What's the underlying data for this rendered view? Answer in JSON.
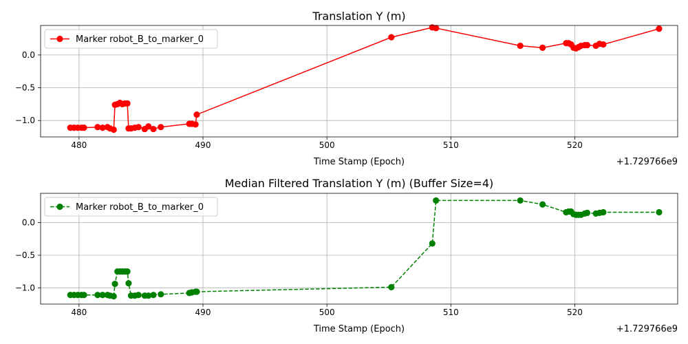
{
  "chart_data": [
    {
      "type": "line",
      "title": "Translation Y (m)",
      "xlabel": "Time Stamp (Epoch)",
      "ylabel": "",
      "x_offset_label": "+1.729766e9",
      "xlim": [
        476.9,
        528.3
      ],
      "ylim": [
        -1.25,
        0.45
      ],
      "xticks": [
        480,
        490,
        500,
        510,
        520
      ],
      "xtick_labels": [
        "480",
        "490",
        "500",
        "510",
        "520"
      ],
      "yticks": [
        0.0,
        -0.5,
        -1.0
      ],
      "ytick_labels": [
        "0.0",
        "−0.5",
        "−1.0"
      ],
      "grid": true,
      "legend_position": "top-left",
      "series": [
        {
          "name": "Marker robot_B_to_marker_0",
          "color": "#ff0000",
          "line_style": "solid",
          "marker": "circle",
          "points": [
            [
              479.3,
              -1.11
            ],
            [
              479.6,
              -1.11
            ],
            [
              479.9,
              -1.11
            ],
            [
              480.2,
              -1.11
            ],
            [
              480.4,
              -1.11
            ],
            [
              481.5,
              -1.1
            ],
            [
              481.9,
              -1.11
            ],
            [
              482.3,
              -1.1
            ],
            [
              482.5,
              -1.12
            ],
            [
              482.8,
              -1.14
            ],
            [
              482.9,
              -0.76
            ],
            [
              483.1,
              -0.75
            ],
            [
              483.3,
              -0.73
            ],
            [
              483.5,
              -0.75
            ],
            [
              483.7,
              -0.74
            ],
            [
              483.9,
              -0.74
            ],
            [
              484.0,
              -1.12
            ],
            [
              484.2,
              -1.12
            ],
            [
              484.5,
              -1.11
            ],
            [
              484.8,
              -1.1
            ],
            [
              485.3,
              -1.13
            ],
            [
              485.6,
              -1.09
            ],
            [
              486.0,
              -1.13
            ],
            [
              486.6,
              -1.1
            ],
            [
              488.9,
              -1.05
            ],
            [
              489.1,
              -1.05
            ],
            [
              489.4,
              -1.06
            ],
            [
              489.5,
              -0.91
            ],
            [
              505.2,
              0.27
            ],
            [
              508.5,
              0.42
            ],
            [
              508.8,
              0.41
            ],
            [
              515.6,
              0.14
            ],
            [
              517.4,
              0.11
            ],
            [
              519.3,
              0.18
            ],
            [
              519.5,
              0.18
            ],
            [
              519.7,
              0.16
            ],
            [
              519.9,
              0.11
            ],
            [
              520.1,
              0.1
            ],
            [
              520.3,
              0.12
            ],
            [
              520.5,
              0.14
            ],
            [
              520.8,
              0.15
            ],
            [
              521.0,
              0.15
            ],
            [
              521.7,
              0.14
            ],
            [
              522.0,
              0.17
            ],
            [
              522.3,
              0.16
            ],
            [
              526.8,
              0.4
            ]
          ]
        }
      ]
    },
    {
      "type": "line",
      "title": "Median Filtered Translation Y (m) (Buffer Size=4)",
      "xlabel": "Time Stamp (Epoch)",
      "ylabel": "",
      "x_offset_label": "+1.729766e9",
      "xlim": [
        476.9,
        528.3
      ],
      "ylim": [
        -1.25,
        0.45
      ],
      "xticks": [
        480,
        490,
        500,
        510,
        520
      ],
      "xtick_labels": [
        "480",
        "490",
        "500",
        "510",
        "520"
      ],
      "yticks": [
        0.0,
        -0.5,
        -1.0
      ],
      "ytick_labels": [
        "0.0",
        "−0.5",
        "−1.0"
      ],
      "grid": true,
      "legend_position": "top-left",
      "series": [
        {
          "name": "Marker robot_B_to_marker_0",
          "color": "#008000",
          "line_style": "dashed",
          "marker": "circle",
          "points": [
            [
              479.3,
              -1.11
            ],
            [
              479.6,
              -1.11
            ],
            [
              479.9,
              -1.11
            ],
            [
              480.2,
              -1.11
            ],
            [
              480.4,
              -1.11
            ],
            [
              481.5,
              -1.11
            ],
            [
              481.9,
              -1.11
            ],
            [
              482.3,
              -1.11
            ],
            [
              482.5,
              -1.12
            ],
            [
              482.8,
              -1.13
            ],
            [
              482.9,
              -0.94
            ],
            [
              483.1,
              -0.75
            ],
            [
              483.3,
              -0.75
            ],
            [
              483.5,
              -0.75
            ],
            [
              483.7,
              -0.75
            ],
            [
              483.9,
              -0.75
            ],
            [
              484.0,
              -0.93
            ],
            [
              484.2,
              -1.12
            ],
            [
              484.5,
              -1.12
            ],
            [
              484.8,
              -1.11
            ],
            [
              485.3,
              -1.12
            ],
            [
              485.6,
              -1.12
            ],
            [
              486.0,
              -1.11
            ],
            [
              486.6,
              -1.1
            ],
            [
              488.9,
              -1.08
            ],
            [
              489.1,
              -1.07
            ],
            [
              489.4,
              -1.06
            ],
            [
              489.5,
              -1.06
            ],
            [
              505.2,
              -0.99
            ],
            [
              508.5,
              -0.32
            ],
            [
              508.8,
              0.34
            ],
            [
              515.6,
              0.34
            ],
            [
              517.4,
              0.28
            ],
            [
              519.3,
              0.16
            ],
            [
              519.5,
              0.17
            ],
            [
              519.7,
              0.17
            ],
            [
              519.9,
              0.13
            ],
            [
              520.1,
              0.12
            ],
            [
              520.3,
              0.12
            ],
            [
              520.5,
              0.12
            ],
            [
              520.8,
              0.14
            ],
            [
              521.0,
              0.15
            ],
            [
              521.7,
              0.14
            ],
            [
              522.0,
              0.15
            ],
            [
              522.3,
              0.16
            ],
            [
              526.8,
              0.16
            ]
          ]
        }
      ]
    }
  ]
}
